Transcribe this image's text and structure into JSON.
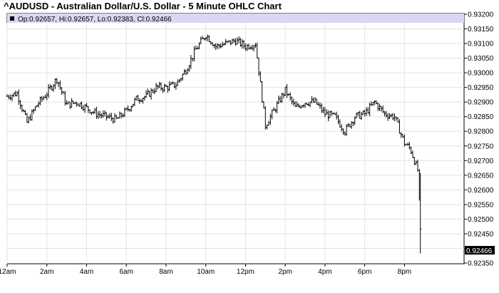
{
  "title": "^AUDUSD - Australian Dollar/U.S. Dollar - 5 Minute OHLC Chart",
  "ohlc_legend": "Op:0.92657, Hi:0.92657, Lo:0.92383, Cl:0.92466",
  "last_price_label": "0.92466",
  "colors": {
    "legend_band": "#d8d8f2",
    "price_line": "#000000",
    "grid": "#e3e3e3",
    "last_price_box": "#000000"
  },
  "chart_data": {
    "type": "ohlc",
    "title": "^AUDUSD - Australian Dollar/U.S. Dollar - 5 Minute OHLC Chart",
    "interval": "5 Minute",
    "x_ticks": [
      "12am",
      "2am",
      "4am",
      "6am",
      "8am",
      "10am",
      "12pm",
      "2pm",
      "4pm",
      "6pm",
      "8pm"
    ],
    "x_range_hours": [
      0,
      23
    ],
    "y_ticks": [
      "0.93200",
      "0.93150",
      "0.93100",
      "0.93050",
      "0.93000",
      "0.92950",
      "0.92900",
      "0.92850",
      "0.92800",
      "0.92750",
      "0.92700",
      "0.92650",
      "0.92600",
      "0.92550",
      "0.92500",
      "0.92450",
      "0.92400",
      "0.92350"
    ],
    "ylim": [
      0.9235,
      0.932
    ],
    "grid": true,
    "last_bar": {
      "open": 0.92657,
      "high": 0.92657,
      "low": 0.92383,
      "close": 0.92466
    },
    "closes_hourly": [
      {
        "hour": 0.0,
        "close": 0.9292
      },
      {
        "hour": 0.5,
        "close": 0.9293
      },
      {
        "hour": 1.0,
        "close": 0.9283
      },
      {
        "hour": 1.5,
        "close": 0.9289
      },
      {
        "hour": 2.0,
        "close": 0.9293
      },
      {
        "hour": 2.5,
        "close": 0.9298
      },
      {
        "hour": 3.0,
        "close": 0.9289
      },
      {
        "hour": 3.5,
        "close": 0.929
      },
      {
        "hour": 4.0,
        "close": 0.9288
      },
      {
        "hour": 4.5,
        "close": 0.9286
      },
      {
        "hour": 5.0,
        "close": 0.9285
      },
      {
        "hour": 5.5,
        "close": 0.9284
      },
      {
        "hour": 6.0,
        "close": 0.9287
      },
      {
        "hour": 6.5,
        "close": 0.9291
      },
      {
        "hour": 7.0,
        "close": 0.9292
      },
      {
        "hour": 7.5,
        "close": 0.9295
      },
      {
        "hour": 8.0,
        "close": 0.9295
      },
      {
        "hour": 8.5,
        "close": 0.9296
      },
      {
        "hour": 9.0,
        "close": 0.9301
      },
      {
        "hour": 9.5,
        "close": 0.9308
      },
      {
        "hour": 10.0,
        "close": 0.9313
      },
      {
        "hour": 10.5,
        "close": 0.9309
      },
      {
        "hour": 11.0,
        "close": 0.931
      },
      {
        "hour": 11.5,
        "close": 0.9311
      },
      {
        "hour": 12.0,
        "close": 0.9309
      },
      {
        "hour": 12.5,
        "close": 0.931
      },
      {
        "hour": 13.0,
        "close": 0.9282
      },
      {
        "hour": 13.5,
        "close": 0.9288
      },
      {
        "hour": 14.0,
        "close": 0.9294
      },
      {
        "hour": 14.5,
        "close": 0.9288
      },
      {
        "hour": 15.0,
        "close": 0.929
      },
      {
        "hour": 15.5,
        "close": 0.929
      },
      {
        "hour": 16.0,
        "close": 0.9286
      },
      {
        "hour": 16.5,
        "close": 0.9285
      },
      {
        "hour": 17.0,
        "close": 0.928
      },
      {
        "hour": 17.5,
        "close": 0.9285
      },
      {
        "hour": 18.0,
        "close": 0.9286
      },
      {
        "hour": 18.5,
        "close": 0.929
      },
      {
        "hour": 19.0,
        "close": 0.9286
      },
      {
        "hour": 19.5,
        "close": 0.9285
      },
      {
        "hour": 20.0,
        "close": 0.9276
      },
      {
        "hour": 20.3,
        "close": 0.9274
      },
      {
        "hour": 20.5,
        "close": 0.927
      },
      {
        "hour": 20.7,
        "close": 0.9266
      },
      {
        "hour": 20.8,
        "close": 0.92466
      }
    ]
  }
}
